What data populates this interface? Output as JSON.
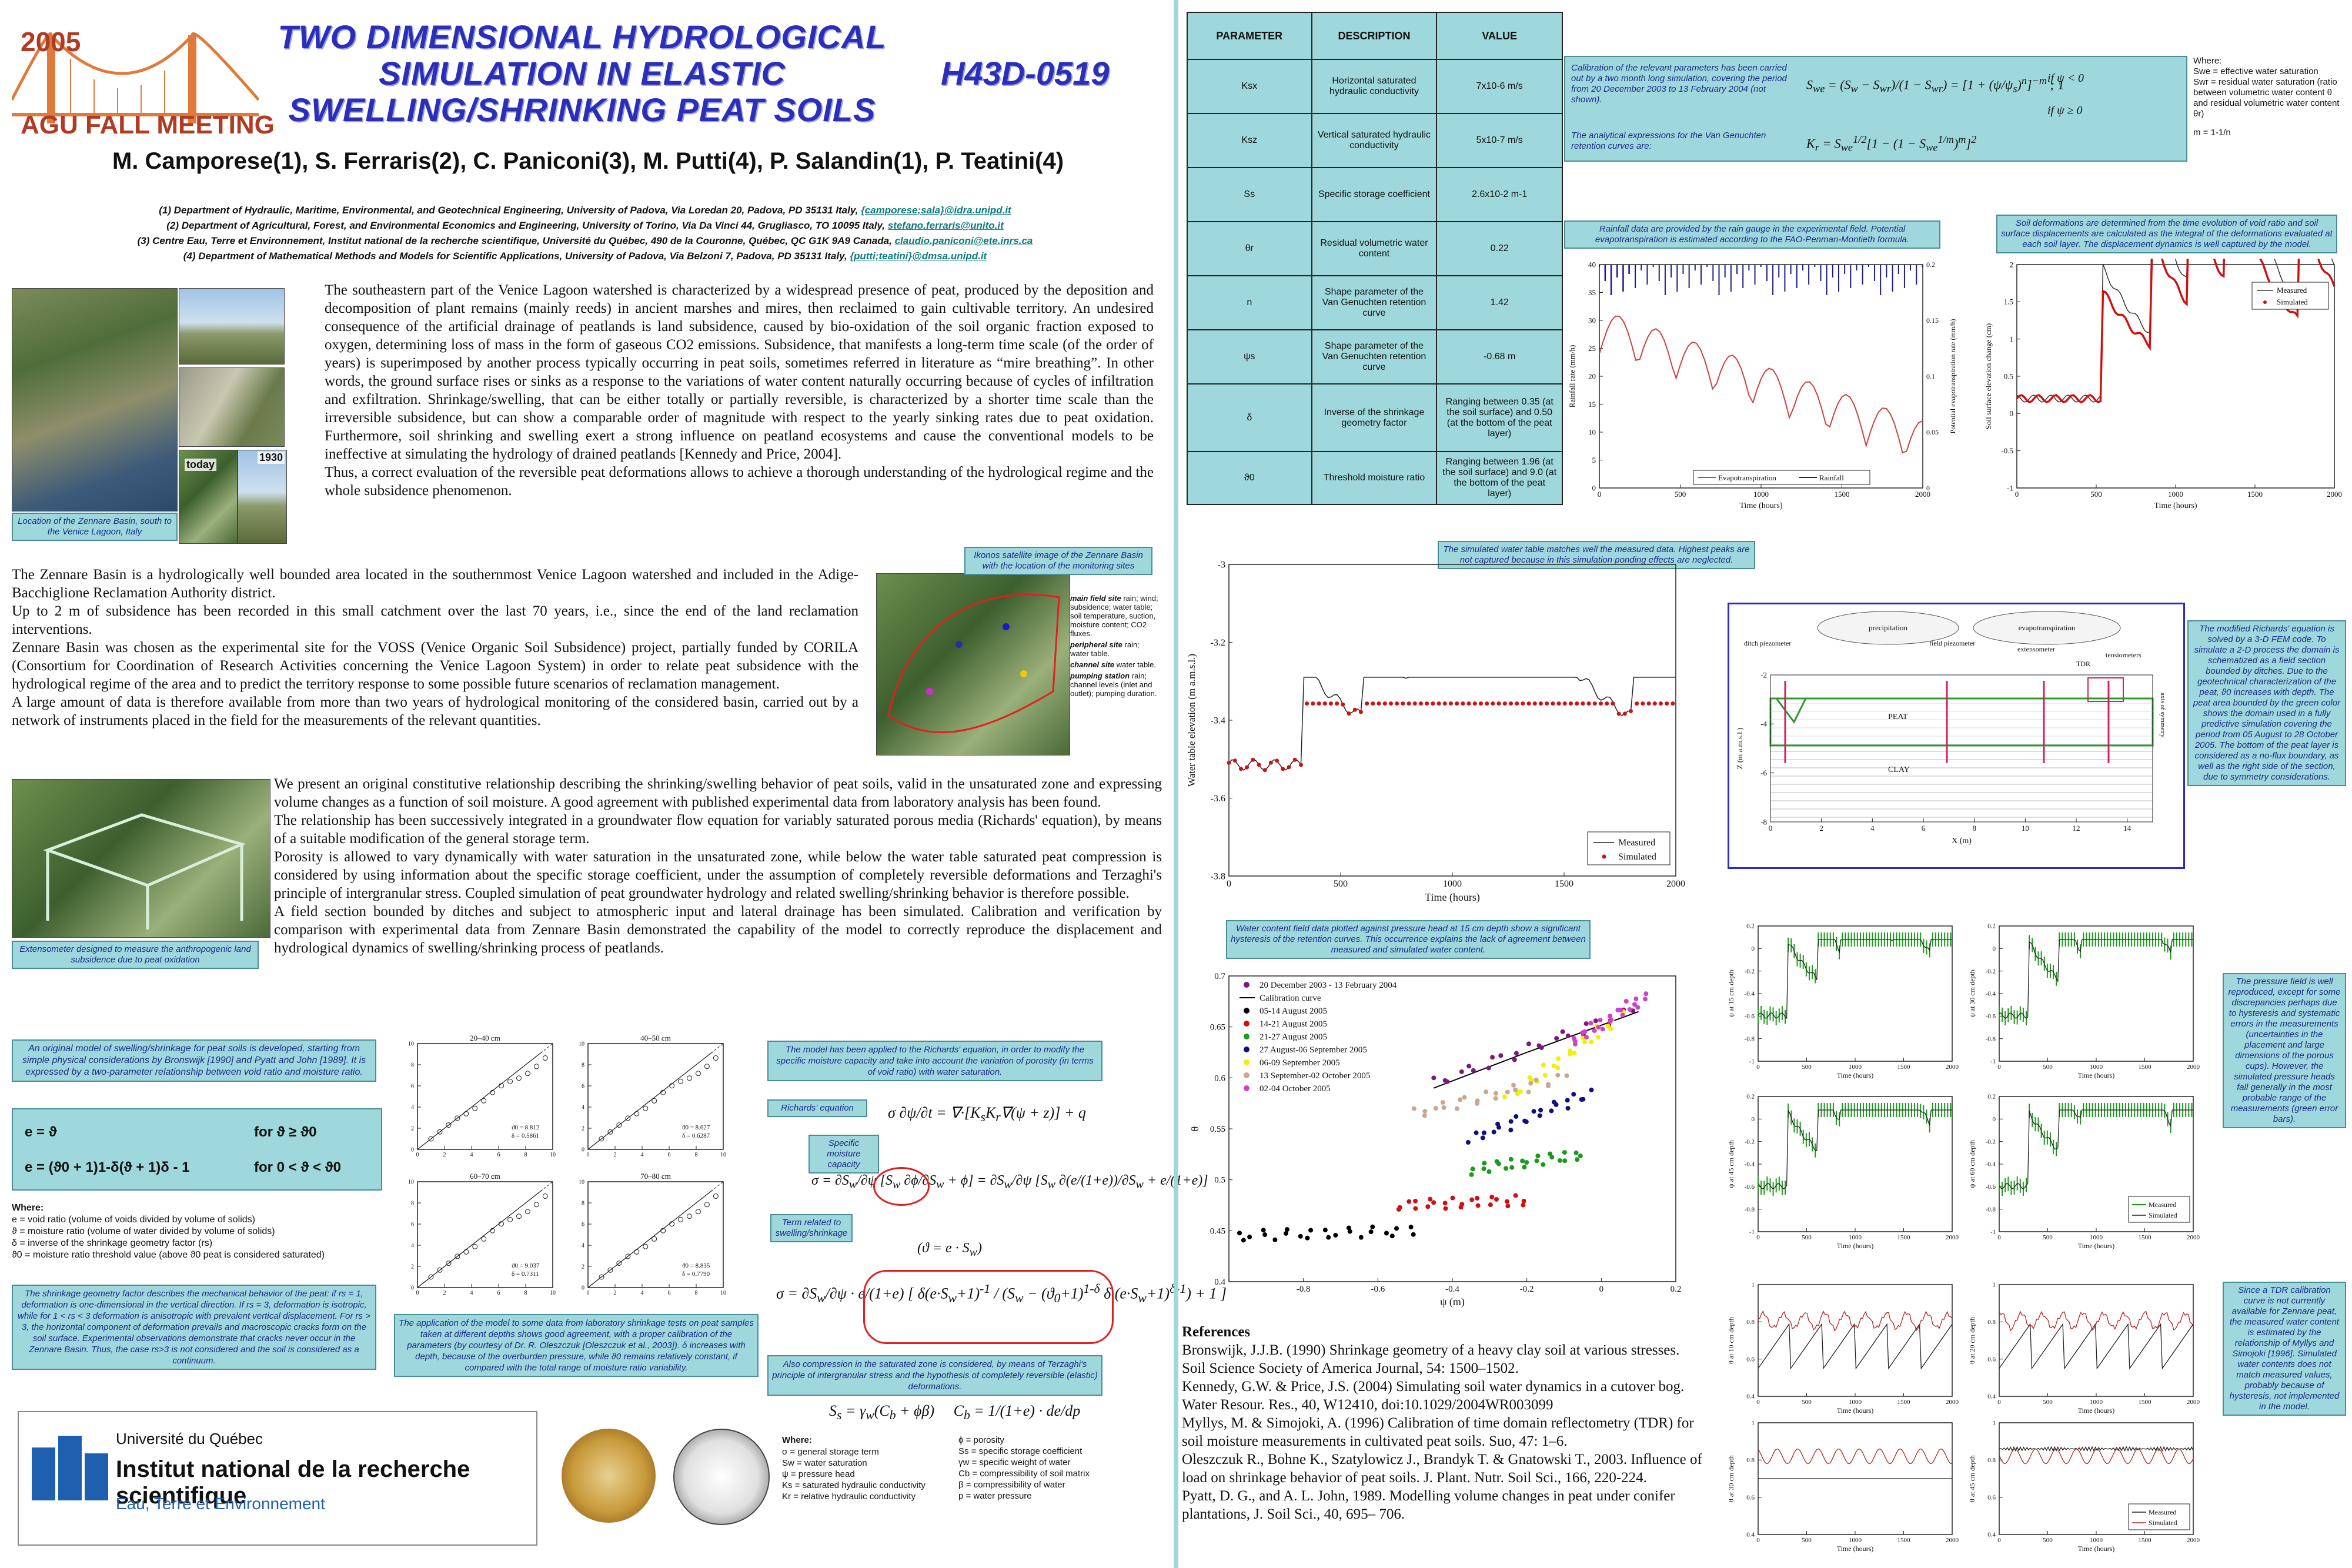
{
  "header": {
    "title_lines": [
      "TWO DIMENSIONAL HYDROLOGICAL",
      "SIMULATION IN ELASTIC",
      "SWELLING/SHRINKING PEAT SOILS"
    ],
    "code": "H43D-0519",
    "logo_year": "2005",
    "logo_text": "AGU FALL MEETING",
    "authors": "M. Camporese(1), S. Ferraris(2), C. Paniconi(3), M. Putti(4), P. Salandin(1), P. Teatini(4)",
    "affiliations": [
      {
        "text": "(1) Department of Hydraulic, Maritime, Environmental, and Geotechnical Engineering, University of Padova, Via Loredan 20, Padova, PD 35131 Italy, ",
        "link": "{camporese;sala}@idra.unipd.it"
      },
      {
        "text": "(2) Department of Agricultural, Forest, and Environmental Economics and Engineering, University of Torino, Via Da Vinci 44, Grugliasco, TO 10095 Italy, ",
        "link": "stefano.ferraris@unito.it"
      },
      {
        "text": "(3) Centre Eau, Terre et Environnement, Institut national de la recherche scientifique, Université du Québec, 490 de la Couronne, Québec, QC G1K 9A9 Canada, ",
        "link": "claudio.paniconi@ete.inrs.ca"
      },
      {
        "text": "(4) Department of Mathematical Methods and Models for Scientific Applications, University of Padova, Via Belzoni 7, Padova, PD 35131 Italy, ",
        "link": "{putti;teatini}@dmsa.unipd.it"
      }
    ]
  },
  "intro": {
    "paragraphs": [
      "The southeastern part of the Venice Lagoon watershed is characterized by a widespread presence of peat, produced by the deposition and decomposition of plant remains (mainly reeds) in ancient marshes and mires, then reclaimed to gain cultivable territory. An undesired consequence of the artificial drainage of peatlands is land subsidence, caused by bio-oxidation of the soil organic fraction exposed to oxygen, determining loss of mass in the form of gaseous CO2 emissions. Subsidence, that manifests a long-term time scale (of the order of years) is superimposed by another process typically occurring in peat soils, sometimes referred in literature as “mire breathing”. In other words, the ground surface rises or sinks as a response to the variations of water content naturally occurring because of cycles of infiltration and exfiltration. Shrinkage/swelling, that can be either totally or partially reversible, is characterized by a shorter time scale than the irreversible subsidence, but can show a comparable order of magnitude with respect to the yearly sinking rates due to peat oxidation. Furthermore, soil shrinking and swelling exert a strong influence on peatland ecosystems and cause the conventional models to be ineffective at simulating the hydrology of drained peatlands [Kennedy and Price, 2004].",
      "Thus, a correct evaluation of the reversible peat deformations allows to achieve a thorough understanding of the hydrological regime and the whole subsidence phenomenon."
    ],
    "map_caption": "Location of the Zennare Basin, south to the Venice Lagoon, Italy",
    "photo_today": "today",
    "photo_1930": "1930"
  },
  "zennare": {
    "paragraphs": [
      "The Zennare Basin is a hydrologically well bounded area located in the southernmost Venice Lagoon watershed and included in the Adige-Bacchiglione Reclamation Authority district.",
      "Up to 2 m of subsidence has been recorded in this small catchment over the last 70 years, i.e., since the end of the land reclamation interventions.",
      "Zennare Basin was chosen as the experimental site for the VOSS (Venice Organic Soil Subsidence) project, partially funded by CORILA (Consortium for Coordination of Research Activities concerning the Venice Lagoon System) in order to relate peat subsidence with the hydrological regime of the area and to predict the territory response to some possible future scenarios of reclamation management.",
      "A large amount of data is therefore available from more than two years of hydrological monitoring of the considered basin, carried out by a network of instruments placed in the field for the measurements of the relevant quantities."
    ],
    "ikonos_caption": "Ikonos satellite image of the Zennare Basin with the location of the monitoring sites",
    "sites": [
      {
        "title": "main field site",
        "desc": "rain; wind; subsidence; water table; soil temperature, suction, moisture content; CO2 fluxes."
      },
      {
        "title": "peripheral site",
        "desc": "rain; water table."
      },
      {
        "title": "channel site",
        "desc": "water table."
      },
      {
        "title": "pumping station",
        "desc": "rain; channel levels (inlet and outlet); pumping duration."
      }
    ],
    "site_colors": [
      "#2e2ea0",
      "#1a1acc",
      "#cc2ecc",
      "#f0c800"
    ]
  },
  "model": {
    "paragraphs": [
      "We present an original constitutive relationship describing the shrinking/swelling behavior of peat soils, valid in the unsaturated zone and expressing volume changes as a function of soil moisture. A good agreement with published experimental data from laboratory analysis has been found.",
      "The relationship has been successively integrated in a groundwater flow equation for variably saturated porous media (Richards' equation), by means of a suitable modification of the general storage term.",
      "Porosity is allowed to vary dynamically with water saturation in the unsaturated zone, while below the water table saturated peat compression is considered by using information about the specific storage coefficient, under the assumption of completely reversible deformations and Terzaghi's principle of intergranular stress. Coupled simulation of peat groundwater hydrology and related swelling/shrinking behavior is therefore possible.",
      "A field section bounded by ditches and subject to atmospheric input and lateral drainage has been simulated. Calibration and verification by comparison with experimental data from Zennare Basin demonstrated the capability of the model to correctly reproduce the displacement and hydrological dynamics of swelling/shrinking process of peatlands."
    ],
    "extensometer_caption": "Extensometer designed to measure the anthropogenic land subsidence due to peat oxidation"
  },
  "constitutive": {
    "intro_caption": "An original model of swelling/shrinkage for peat soils is developed, starting from simple physical considerations by Bronswijk [1990] and Pyatt and John [1989]. It is expressed by a two-parameter relationship between void ratio and moisture ratio.",
    "eq1_left": "e = ϑ",
    "eq1_right": "for ϑ ≥ ϑ0",
    "eq2_left": "e = (ϑ0 + 1)1-δ(ϑ + 1)δ - 1",
    "eq2_right": "for 0 < ϑ < ϑ0",
    "where_title": "Where:",
    "where_items": [
      "e = void ratio (volume of voids divided by volume of solids)",
      "ϑ = moisture ratio (volume of water divided by volume of solids)",
      "δ = inverse of the shrinkage geometry factor (rs)",
      "ϑ0 = moisture ratio threshold value (above ϑ0 peat is considered saturated)"
    ],
    "shrinkage_caption": "The shrinkage geometry factor describes the mechanical behavior of the peat: if rs = 1, deformation is one-dimensional in the vertical direction. If rs = 3, deformation is isotropic, while for 1 < rs < 3 deformation is anisotropic with prevalent vertical displacement. For rs > 3, the horizontal component of deformation prevails and macroscopic cracks form on the soil surface. Experimental observations demonstrate that cracks never occur in the Zennare Basin. Thus, the case rs>3 is not considered and the soil is considered as a continuum.",
    "lab_caption": "The application of the model to some data from laboratory shrinkage tests on peat samples taken at different depths shows good agreement, with a proper calibration of the parameters (by courtesy of Dr. R. Oleszczuk [Oleszczuk et al., 2003]). δ increases with depth, because of the overburden pressure, while ϑ0 remains relatively constant, if compared with the total range of moisture ratio variability.",
    "panels": [
      {
        "title": "20–40 cm",
        "t0": "ϑ0 = 8.812",
        "d": "δ = 0.5861"
      },
      {
        "title": "40–50 cm",
        "t0": "ϑ0 = 8.627",
        "d": "δ = 0.6287"
      },
      {
        "title": "60–70 cm",
        "t0": "ϑ0 = 9.037",
        "d": "δ = 0.7311"
      },
      {
        "title": "70–80 cm",
        "t0": "ϑ0 = 8.835",
        "d": "δ = 0.7790"
      }
    ]
  },
  "richards": {
    "applied_caption": "The model has been applied to the Richards' equation, in order to modify the specific moisture capacity and take into account the variation of porosity (in terms of void ratio) with water saturation.",
    "label_richards": "Richards' equation",
    "label_capacity": "Specific moisture capacity",
    "label_term": "Term related to swelling/shrinkage",
    "compression_caption": "Also compression in the saturated zone is considered, by means of Terzaghi's principle of intergranular stress and the hypothesis of completely reversible (elastic) deformations.",
    "where_title": "Where:",
    "where_left": [
      "σ = general storage term",
      "Sw = water saturation",
      "ψ = pressure head",
      "Ks = saturated hydraulic conductivity",
      "Kr = relative hydraulic conductivity"
    ],
    "where_right": [
      "ϕ = porosity",
      "Ss = specific storage coefficient",
      "γw = specific weight of water",
      "Cb = compressibility of soil matrix",
      "β = compressibility of water",
      "p = water pressure"
    ]
  },
  "logos": {
    "inrs_line1": "Université du Québec",
    "inrs_line2": "Institut national de la recherche scientifique",
    "inrs_line3": "Eau, Terre et Environnement"
  },
  "parameters": {
    "headers": [
      "PARAMETER",
      "DESCRIPTION",
      "VALUE"
    ],
    "rows": [
      {
        "param": "Ksx",
        "desc": "Horizontal saturated hydraulic conductivity",
        "value": "7x10-6 m/s"
      },
      {
        "param": "Ksz",
        "desc": "Vertical saturated hydraulic conductivity",
        "value": "5x10-7 m/s"
      },
      {
        "param": "Ss",
        "desc": "Specific storage coefficient",
        "value": "2.6x10-2 m-1"
      },
      {
        "param": "θr",
        "desc": "Residual volumetric water content",
        "value": "0.22"
      },
      {
        "param": "n",
        "desc": "Shape parameter of the Van Genuchten retention curve",
        "value": "1.42"
      },
      {
        "param": "ψs",
        "desc": "Shape parameter of the Van Genuchten retention curve",
        "value": "-0.68 m"
      },
      {
        "param": "δ",
        "desc": "Inverse of the shrinkage geometry factor",
        "value": "Ranging between 0.35 (at the soil surface) and 0.50 (at the bottom of the peat layer)"
      },
      {
        "param": "ϑ0",
        "desc": "Threshold moisture ratio",
        "value": "Ranging between 1.96 (at the soil surface) and 9.0 (at the bottom of the peat layer)"
      }
    ]
  },
  "calibration": {
    "caption1": "Calibration of the relevant parameters has been carried out by a two month long simulation, covering the period from 20 December 2003 to 13 February 2004 (not shown).",
    "caption2": "The analytical expressions for the Van Genuchten retention curves are:",
    "where_title": "Where:",
    "where_items": [
      "Swe = effective water saturation",
      "Swr = residual water saturation (ratio between volumetric water content θ and residual volumetric water content θr)",
      "m = 1-1/n"
    ],
    "cond1": "if  ψ < 0",
    "cond2": "if  ψ ≥ 0"
  },
  "rainfall": {
    "caption": "Rainfall data are provided by the rain gauge in the experimental field. Potential evapotranspiration is estimated according to the FAO-Penman-Montieth formula.",
    "xlabel": "Time (hours)",
    "ylabel_left": "Rainfall rate (mm/h)",
    "ylabel_right": "Potential evapotranspiration rate (mm/h)",
    "legend": [
      "Evapotranspiration",
      "Rainfall"
    ]
  },
  "deformation": {
    "caption": "Soil deformations are determined from the time evolution of void ratio and soil surface displacements are calculated as the integral of the deformations evaluated at each soil layer. The displacement dynamics is well captured by the model.",
    "xlabel": "Time (hours)",
    "ylabel": "Soil surface elevation change (cm)",
    "legend": [
      "Measured",
      "Simulated"
    ]
  },
  "watertable": {
    "caption": "The simulated water table matches well the measured data. Highest peaks are not captured because in this simulation ponding effects are neglected.",
    "xlabel": "Time (hours)",
    "ylabel": "Water table elevation (m a.m.s.l.)",
    "legend": [
      "Measured",
      "Simulated"
    ]
  },
  "section": {
    "labels": {
      "precip": "precipitation",
      "evapo": "evapotranspiration",
      "ditch": "ditch piezometer",
      "field": "field piezometer",
      "exten": "extensometer",
      "tdr": "TDR",
      "tensio": "tensiometers",
      "peat": "PEAT",
      "clay": "CLAY",
      "axis": "axis of symmetry"
    },
    "xlabel": "X (m)",
    "ylabel": "Z (m a.m.s.l.)",
    "caption": "The modified Richards' equation is solved by a 3-D FEM code. To simulate a 2-D process the domain is schematized as a field section bounded by ditches. Due to the geotechnical characterization of the peat, ϑ0 increases with depth. The peat area bounded by the green color shows the domain used in a fully predictive simulation covering the period from 05 August to 28 October 2005. The bottom of the peat layer is considered as a no-flux boundary, as well as the right side of the section, due to symmetry considerations."
  },
  "retention": {
    "caption": "Water content field data plotted against pressure head at 15 cm depth show a significant hysteresis of the retention curves. This occurrence explains the lack of agreement between measured and simulated water content.",
    "xlabel": "ψ (m)",
    "ylabel": "θ",
    "legend": [
      {
        "label": "20 December 2003 - 13 February 2004",
        "color": "#7a1a7a"
      },
      {
        "label": "Calibration curve",
        "color": "#000000"
      },
      {
        "label": "05-14 August 2005",
        "color": "#000000"
      },
      {
        "label": "14-21 August 2005",
        "color": "#d01010"
      },
      {
        "label": "21-27 August 2005",
        "color": "#1a9a1a"
      },
      {
        "label": "27 August-06 September 2005",
        "color": "#10107a"
      },
      {
        "label": "06-09 September 2005",
        "color": "#f0f000"
      },
      {
        "label": "13 September-02 October 2005",
        "color": "#c8a890"
      },
      {
        "label": "02-04 October 2005",
        "color": "#d040d0"
      }
    ]
  },
  "pressure": {
    "ylabels": [
      "ψ at 15 cm depth",
      "ψ at 30 cm depth",
      "ψ at 45 cm depth",
      "ψ at 60 cm depth"
    ],
    "xlabel": "Time (hours)",
    "legend": [
      "Measured",
      "Simulated"
    ],
    "caption": "The pressure field is well reproduced, except for some discrepancies perhaps due to hysteresis and systematic errors in the measurements (uncertainties in the placement and large dimensions of the porous cups). However, the simulated pressure heads fall generally in the most probable range of the measurements (green error bars)."
  },
  "moisture": {
    "ylabels": [
      "θ at 10 cm depth",
      "θ at 20 cm depth",
      "θ at 30 cm depth",
      "θ at 45 cm depth"
    ],
    "xlabel": "Time (hours)",
    "legend": [
      "Measured",
      "Simulated"
    ],
    "caption": "Since a TDR calibration curve is not currently available for Zennare peat, the measured water content is estimated by the relationship of Myllys and Simojoki [1996]. Simulated water contents does not match measured values, probably because of hysteresis, not implemented in the model."
  },
  "references": {
    "title": "References",
    "items": [
      "Bronswijk, J.J.B. (1990) Shrinkage geometry of a heavy clay soil at various stresses. Soil Science Society of America Journal, 54: 1500–1502.",
      "Kennedy, G.W. & Price, J.S. (2004) Simulating soil water dynamics in a cutover bog. Water Resour. Res., 40, W12410, doi:10.1029/2004WR003099",
      "Myllys, M. & Simojoki, A. (1996) Calibration of time domain reflectometry (TDR) for soil moisture measurements in cultivated peat soils. Suo, 47: 1–6.",
      "Oleszczuk R., Bohne K., Szatylowicz J., Brandyk T. & Gnatowski T., 2003. Influence of load on shrinkage behavior of peat soils. J. Plant. Nutr. Soil Sci., 166, 220-224.",
      "Pyatt, D. G., and A. L. John, 1989. Modelling volume changes in peat under conifer plantations, J. Soil Sci., 40, 695– 706."
    ]
  }
}
